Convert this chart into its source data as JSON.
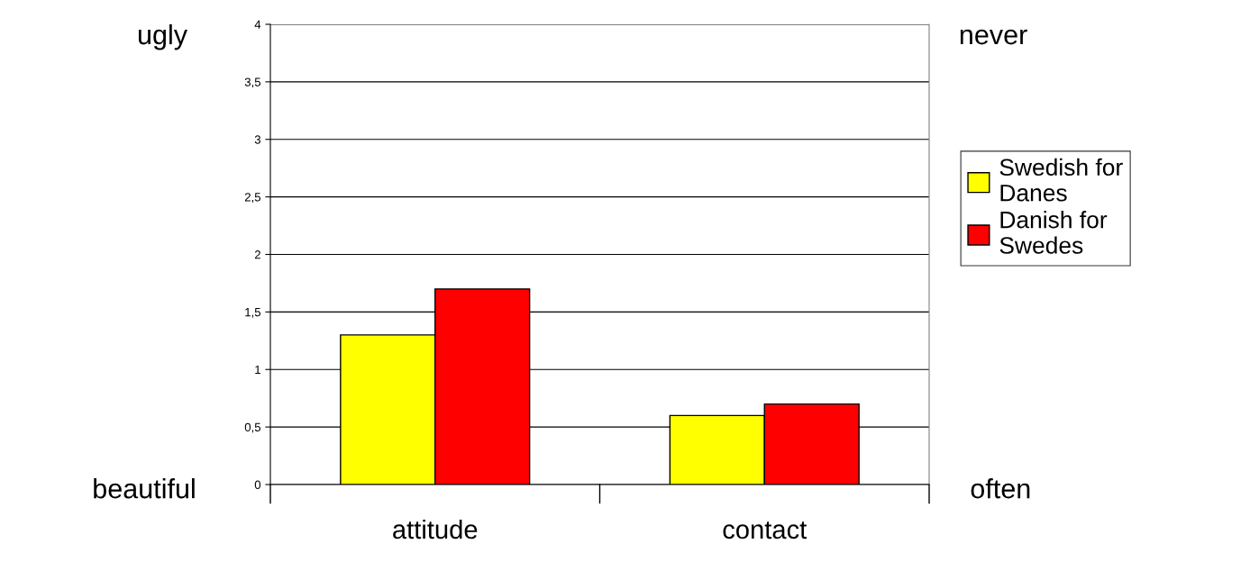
{
  "chart_data": {
    "type": "bar",
    "categories": [
      "attitude",
      "contact"
    ],
    "series": [
      {
        "name": "Swedish for Danes",
        "color": "#ffff00",
        "values": [
          1.3,
          0.6
        ]
      },
      {
        "name": "Danish for Swedes",
        "color": "#ff0000",
        "values": [
          1.7,
          0.7
        ]
      }
    ],
    "ylim": [
      0,
      4
    ],
    "yticks": [
      0,
      {
        "value": 0.5,
        "label": "0,5"
      },
      1,
      {
        "value": 1.5,
        "label": "1,5"
      },
      2,
      {
        "value": 2.5,
        "label": "2,5"
      },
      3,
      {
        "value": 3.5,
        "label": "3,5"
      },
      4
    ],
    "grid": "y",
    "legend": "right",
    "annotations": [
      "ugly",
      "beautiful",
      "never",
      "often"
    ]
  }
}
